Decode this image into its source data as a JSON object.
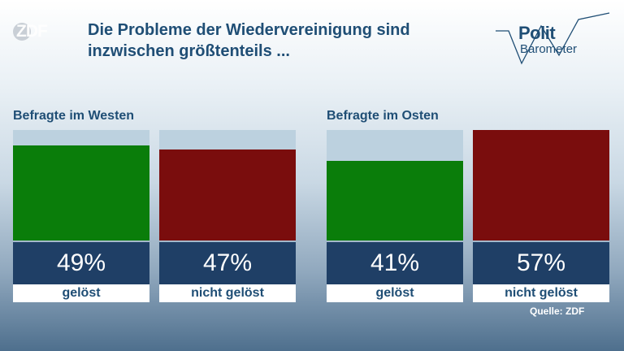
{
  "logo": {
    "text": "ZDF"
  },
  "title": "Die Probleme der Wiedervereinigung sind inzwischen größtenteils ...",
  "brand": {
    "line1": "Polit",
    "line2": "Barometer"
  },
  "colors": {
    "geloest": "#0a7d0a",
    "nicht_geloest": "#7a0d0d",
    "value_box": "#1f3f66",
    "text": "#1f4e75"
  },
  "chart_data": [
    {
      "type": "bar",
      "title": "Befragte im Westen",
      "categories": [
        "gelöst",
        "nicht gelöst"
      ],
      "values": [
        49,
        47
      ],
      "labels": [
        "49%",
        "47%"
      ],
      "ylim": [
        0,
        57
      ]
    },
    {
      "type": "bar",
      "title": "Befragte im Osten",
      "categories": [
        "gelöst",
        "nicht gelöst"
      ],
      "values": [
        41,
        57
      ],
      "labels": [
        "41%",
        "57%"
      ],
      "ylim": [
        0,
        57
      ]
    }
  ],
  "source": "Quelle: ZDF"
}
